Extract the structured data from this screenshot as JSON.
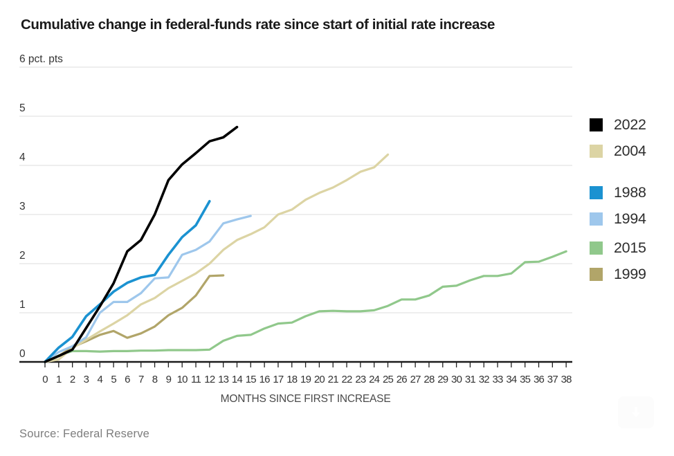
{
  "title": "Cumulative change in federal-funds rate since start of initial rate increase",
  "source": "Source: Federal Reserve",
  "download_button": {
    "icon": "down-arrow-icon"
  },
  "chart_data": {
    "type": "line",
    "title": "Cumulative change in federal-funds rate since start of initial rate increase",
    "xlabel": "MONTHS SINCE FIRST INCREASE",
    "ylabel": "",
    "y_unit_label": "6 pct. pts",
    "xlim": [
      0,
      38
    ],
    "ylim": [
      0,
      6
    ],
    "x_ticks": [
      0,
      1,
      2,
      3,
      4,
      5,
      6,
      7,
      8,
      9,
      10,
      11,
      12,
      13,
      14,
      15,
      16,
      17,
      18,
      19,
      20,
      21,
      22,
      23,
      24,
      25,
      26,
      27,
      28,
      29,
      30,
      31,
      32,
      33,
      34,
      35,
      36,
      37,
      38
    ],
    "y_ticks": [
      0,
      1,
      2,
      3,
      4,
      5,
      6
    ],
    "y_tick_labels": [
      "0",
      "1",
      "2",
      "3",
      "4",
      "5",
      "6 pct. pts"
    ],
    "grid": "horizontal",
    "legend_position": "right",
    "series": [
      {
        "name": "2022",
        "color": "#000000",
        "line_width": 3.6,
        "values": [
          0,
          0.12,
          0.25,
          0.69,
          1.13,
          1.6,
          2.25,
          2.48,
          3.0,
          3.7,
          4.02,
          4.25,
          4.49,
          4.57,
          4.78
        ]
      },
      {
        "name": "2004",
        "color": "#dcd4a4",
        "line_width": 3.2,
        "values": [
          0,
          0.05,
          0.28,
          0.45,
          0.62,
          0.78,
          0.95,
          1.17,
          1.3,
          1.5,
          1.65,
          1.8,
          2.0,
          2.28,
          2.48,
          2.6,
          2.74,
          3.0,
          3.1,
          3.3,
          3.44,
          3.55,
          3.7,
          3.87,
          3.96,
          4.22
        ]
      },
      {
        "name": "1988",
        "color": "#1b92d1",
        "line_width": 3.6,
        "values": [
          0,
          0.29,
          0.51,
          0.93,
          1.17,
          1.43,
          1.61,
          1.72,
          1.77,
          2.18,
          2.54,
          2.78,
          3.27
        ]
      },
      {
        "name": "1994",
        "color": "#9ec7ec",
        "line_width": 3.2,
        "values": [
          0,
          0.2,
          0.32,
          0.5,
          1.0,
          1.22,
          1.22,
          1.4,
          1.7,
          1.72,
          2.18,
          2.28,
          2.45,
          2.82,
          2.9,
          2.97
        ]
      },
      {
        "name": "2015",
        "color": "#90c88b",
        "line_width": 3.2,
        "values": [
          0,
          0.13,
          0.22,
          0.22,
          0.21,
          0.22,
          0.22,
          0.23,
          0.23,
          0.24,
          0.24,
          0.24,
          0.25,
          0.43,
          0.53,
          0.55,
          0.68,
          0.78,
          0.8,
          0.93,
          1.03,
          1.04,
          1.03,
          1.03,
          1.05,
          1.14,
          1.27,
          1.27,
          1.35,
          1.53,
          1.55,
          1.66,
          1.75,
          1.75,
          1.8,
          2.03,
          2.04,
          2.14,
          2.25
        ]
      },
      {
        "name": "1999",
        "color": "#b1a569",
        "line_width": 3.2,
        "values": [
          0,
          0.12,
          0.3,
          0.42,
          0.55,
          0.63,
          0.49,
          0.58,
          0.72,
          0.95,
          1.1,
          1.35,
          1.75,
          1.76
        ]
      }
    ],
    "legend_groups": [
      [
        "2022",
        "2004"
      ],
      [
        "1988",
        "1994"
      ],
      [
        "2015",
        "1999"
      ]
    ]
  }
}
